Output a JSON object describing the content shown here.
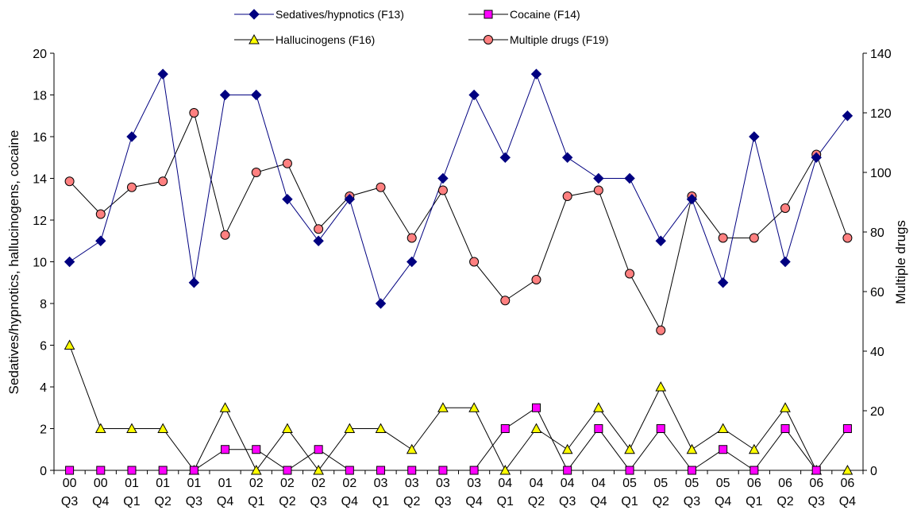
{
  "chart_data": {
    "type": "line",
    "categories": [
      [
        "00",
        "Q3"
      ],
      [
        "00",
        "Q4"
      ],
      [
        "01",
        "Q1"
      ],
      [
        "01",
        "Q2"
      ],
      [
        "01",
        "Q3"
      ],
      [
        "01",
        "Q4"
      ],
      [
        "02",
        "Q1"
      ],
      [
        "02",
        "Q2"
      ],
      [
        "02",
        "Q3"
      ],
      [
        "02",
        "Q4"
      ],
      [
        "03",
        "Q1"
      ],
      [
        "03",
        "Q2"
      ],
      [
        "03",
        "Q3"
      ],
      [
        "03",
        "Q4"
      ],
      [
        "04",
        "Q1"
      ],
      [
        "04",
        "Q2"
      ],
      [
        "04",
        "Q3"
      ],
      [
        "04",
        "Q4"
      ],
      [
        "05",
        "Q1"
      ],
      [
        "05",
        "Q2"
      ],
      [
        "05",
        "Q3"
      ],
      [
        "05",
        "Q4"
      ],
      [
        "06",
        "Q1"
      ],
      [
        "06",
        "Q2"
      ],
      [
        "06",
        "Q3"
      ],
      [
        "06",
        "Q4"
      ]
    ],
    "ylabel": "Sedatives/hypnotics, hallucinogens, cocaine",
    "y2label": "Multiple drugs",
    "ylim": [
      0,
      20
    ],
    "yticks": [
      "0",
      "2",
      "4",
      "6",
      "8",
      "10",
      "12",
      "14",
      "16",
      "18",
      "20"
    ],
    "y2lim": [
      0,
      140
    ],
    "y2ticks": [
      "0",
      "20",
      "40",
      "60",
      "80",
      "100",
      "120",
      "140"
    ],
    "grid": false,
    "legend": "top-center",
    "series": [
      {
        "name": "Sedatives/hypnotics (F13)",
        "axis": "left",
        "marker": "diamond",
        "color": "#000080",
        "fill": "#000080",
        "values": [
          10,
          11,
          16,
          19,
          9,
          18,
          18,
          13,
          11,
          13,
          8,
          10,
          14,
          18,
          15,
          19,
          15,
          14,
          14,
          11,
          13,
          9,
          16,
          10,
          15,
          17
        ]
      },
      {
        "name": "Cocaine (F14)",
        "axis": "left",
        "marker": "square",
        "color": "#000000",
        "fill": "#ff00ff",
        "values": [
          0,
          0,
          0,
          0,
          0,
          1,
          1,
          0,
          1,
          0,
          0,
          0,
          0,
          0,
          2,
          3,
          0,
          2,
          0,
          2,
          0,
          1,
          0,
          2,
          0,
          2
        ]
      },
      {
        "name": "Hallucinogens (F16)",
        "axis": "left",
        "marker": "triangle",
        "color": "#000000",
        "fill": "#ffff00",
        "values": [
          6,
          2,
          2,
          2,
          0,
          3,
          0,
          2,
          0,
          2,
          2,
          1,
          3,
          3,
          0,
          2,
          1,
          3,
          1,
          4,
          1,
          2,
          1,
          3,
          0,
          0
        ]
      },
      {
        "name": "Multiple drugs (F19)",
        "axis": "right",
        "marker": "circle",
        "color": "#000000",
        "fill": "#ff8080",
        "values": [
          97,
          86,
          95,
          97,
          120,
          79,
          100,
          103,
          81,
          92,
          95,
          78,
          94,
          70,
          57,
          64,
          92,
          94,
          66,
          47,
          92,
          78,
          78,
          88,
          106,
          78
        ]
      }
    ]
  }
}
